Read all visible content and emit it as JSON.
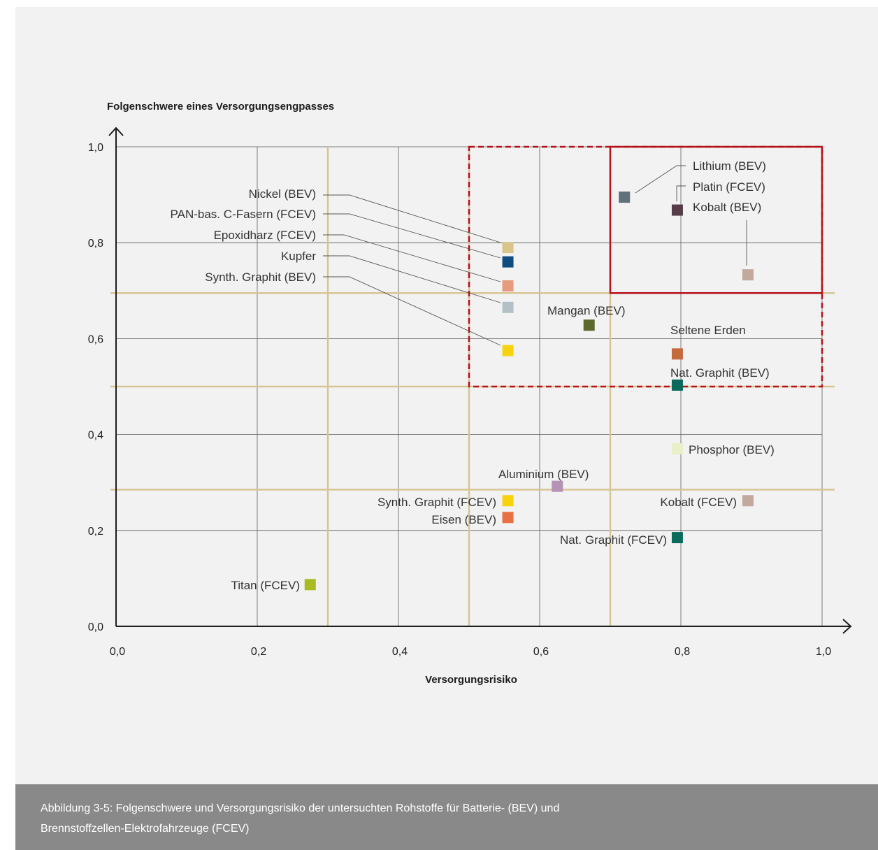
{
  "figure": {
    "caption_line1": "Abbildung 3-5: Folgenschwere und Versorgungsrisiko der untersuchten Rohstoffe für Batterie- (BEV) und",
    "caption_line2": "Brennstoffzellen-Elektrofahrzeuge (FCEV)"
  },
  "colors": {
    "panel_bg": "#f2f2f2",
    "caption_bg": "#898989",
    "grid": "#5a5a5a",
    "threshold": "#d8c594",
    "highlight": "#b5121b"
  },
  "chart_data": {
    "type": "scatter",
    "xlabel": "Versorgungsrisiko",
    "ylabel": "Folgenschwere eines Versorgungsengpasses",
    "xlim": [
      0,
      1
    ],
    "ylim": [
      0,
      1
    ],
    "x_ticks": [
      "0,0",
      "0,2",
      "0,4",
      "0,6",
      "0,8",
      "1,0"
    ],
    "y_ticks": [
      "0,0",
      "0,2",
      "0,4",
      "0,6",
      "0,8",
      "1,0"
    ],
    "grid": true,
    "threshold_lines": {
      "x": [
        0.3,
        0.5,
        0.7
      ],
      "y": [
        0.285,
        0.5,
        0.695
      ]
    },
    "regions": [
      {
        "style": "dashed",
        "x": [
          0.5,
          1.0
        ],
        "y": [
          0.5,
          1.0
        ]
      },
      {
        "style": "solid",
        "x": [
          0.7,
          1.0
        ],
        "y": [
          0.695,
          1.0
        ]
      }
    ],
    "points": [
      {
        "label": "Nickel (BEV)",
        "x": 0.555,
        "y": 0.79,
        "color": "#d9c58c"
      },
      {
        "label": "PAN-bas. C-Fasern (FCEV)",
        "x": 0.555,
        "y": 0.76,
        "color": "#0f4c81"
      },
      {
        "label": "Epoxidharz (FCEV)",
        "x": 0.555,
        "y": 0.71,
        "color": "#e79a7c"
      },
      {
        "label": "Kupfer",
        "x": 0.555,
        "y": 0.665,
        "color": "#b3c0c6"
      },
      {
        "label": "Synth. Graphit (BEV)",
        "x": 0.555,
        "y": 0.575,
        "color": "#f6d30e"
      },
      {
        "label": "Lithium (BEV)",
        "x": 0.72,
        "y": 0.895,
        "color": "#5f727c"
      },
      {
        "label": "Platin (FCEV)",
        "x": 0.795,
        "y": 0.868,
        "color": "#553c48"
      },
      {
        "label": "Kobalt (BEV)",
        "x": 0.895,
        "y": 0.733,
        "color": "#c2a99e"
      },
      {
        "label": "Mangan (BEV)",
        "x": 0.67,
        "y": 0.628,
        "color": "#5b6a2c"
      },
      {
        "label": "Seltene Erden",
        "x": 0.795,
        "y": 0.568,
        "color": "#c46a3d"
      },
      {
        "label": "Nat. Graphit (BEV)",
        "x": 0.795,
        "y": 0.503,
        "color": "#0a6b5c"
      },
      {
        "label": "Phosphor (BEV)",
        "x": 0.795,
        "y": 0.37,
        "color": "#e8efc9"
      },
      {
        "label": "Aluminium (BEV)",
        "x": 0.625,
        "y": 0.292,
        "color": "#b593b5"
      },
      {
        "label": "Synth. Graphit (FCEV)",
        "x": 0.555,
        "y": 0.262,
        "color": "#f6d30e"
      },
      {
        "label": "Eisen (BEV)",
        "x": 0.555,
        "y": 0.227,
        "color": "#e97043"
      },
      {
        "label": "Kobalt (FCEV)",
        "x": 0.895,
        "y": 0.262,
        "color": "#c2a99e"
      },
      {
        "label": "Nat. Graphit (FCEV)",
        "x": 0.795,
        "y": 0.185,
        "color": "#0a6b5c"
      },
      {
        "label": "Titan (FCEV)",
        "x": 0.275,
        "y": 0.087,
        "color": "#a9bb23"
      }
    ]
  }
}
